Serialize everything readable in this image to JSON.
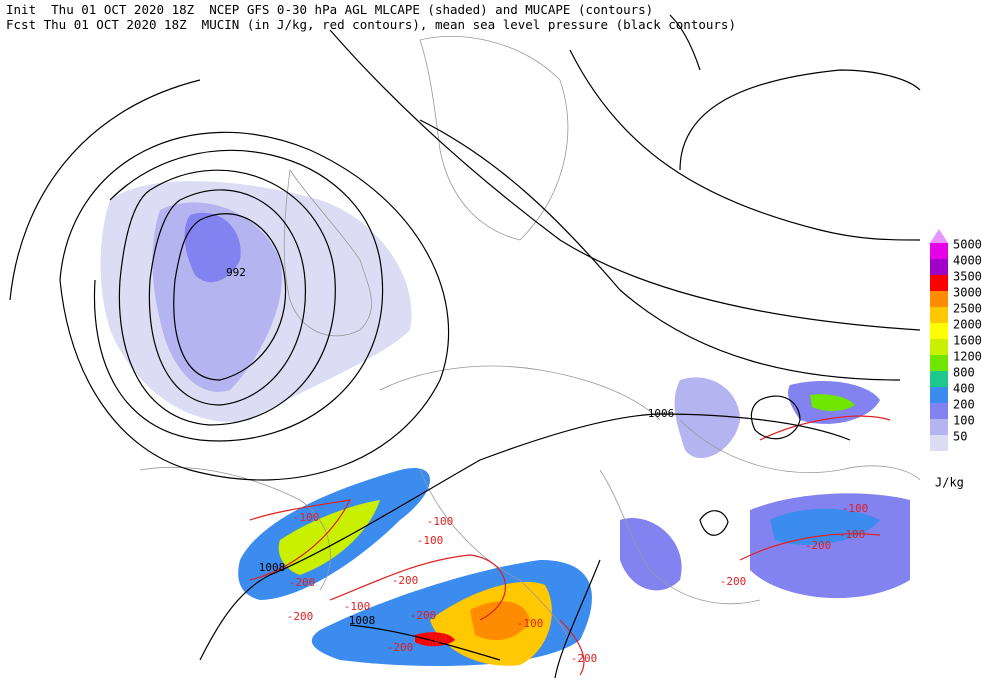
{
  "header": {
    "line1": "Init  Thu 01 OCT 2020 18Z  NCEP GFS 0-30 hPa AGL MLCAPE (shaded) and MUCAPE (contours)",
    "line2": "Fcst Thu 01 OCT 2020 18Z  MUCIN (in J/kg, red contours), mean sea level pressure (black contours)"
  },
  "colorbar": {
    "levels": [
      5000,
      4000,
      3500,
      3000,
      2500,
      2000,
      1600,
      1200,
      800,
      400,
      200,
      100,
      50
    ],
    "colors": [
      "#e600e6",
      "#a000c8",
      "#ff0000",
      "#ff8c00",
      "#ffc800",
      "#ffff00",
      "#c8f000",
      "#6ee600",
      "#1ec88c",
      "#3c8cf0",
      "#8282f0",
      "#b4b4f0",
      "#dcdcf5"
    ],
    "top_color": "#e896ff",
    "unit": "J/kg"
  },
  "contour_labels": [
    "992",
    "1008",
    "1006",
    "1008",
    "-100",
    "-100",
    "-100",
    "-200",
    "-200",
    "-200",
    "-100",
    "-200",
    "-100",
    "-200",
    "-200",
    "-200",
    "-200",
    "-200",
    "-100",
    "-100"
  ]
}
